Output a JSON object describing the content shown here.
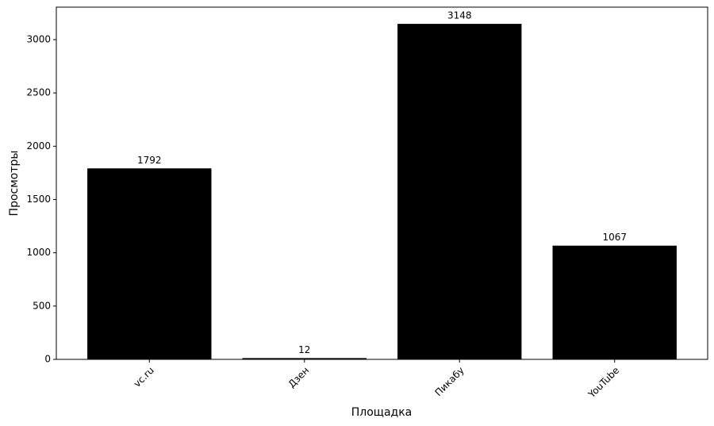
{
  "chart_data": {
    "type": "bar",
    "x_label": "Площадка",
    "y_label": "Просмотры",
    "categories": [
      "vc.ru",
      "Дзен",
      "Пикабу",
      "YouTube"
    ],
    "values": [
      1792,
      12,
      3148,
      1067
    ],
    "color": "#000000",
    "ylim": [
      0,
      3305
    ],
    "yticks": [
      0,
      500,
      1000,
      1500,
      2000,
      2500,
      3000
    ],
    "grid": false
  }
}
